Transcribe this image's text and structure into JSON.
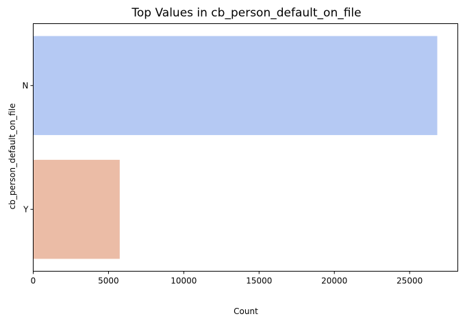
{
  "chart_data": {
    "type": "bar",
    "orientation": "horizontal",
    "title": "Top Values in cb_person_default_on_file",
    "xlabel": "Count",
    "ylabel": "cb_person_default_on_file",
    "categories": [
      "N",
      "Y"
    ],
    "values": [
      26836,
      5745
    ],
    "colors": [
      "#b5c9f3",
      "#ebbca6"
    ],
    "xlim": [
      0,
      28200
    ],
    "xticks": [
      0,
      5000,
      10000,
      15000,
      20000,
      25000
    ],
    "xtick_labels": [
      "0",
      "5000",
      "10000",
      "15000",
      "20000",
      "25000"
    ],
    "grid": false,
    "legend": "none"
  }
}
